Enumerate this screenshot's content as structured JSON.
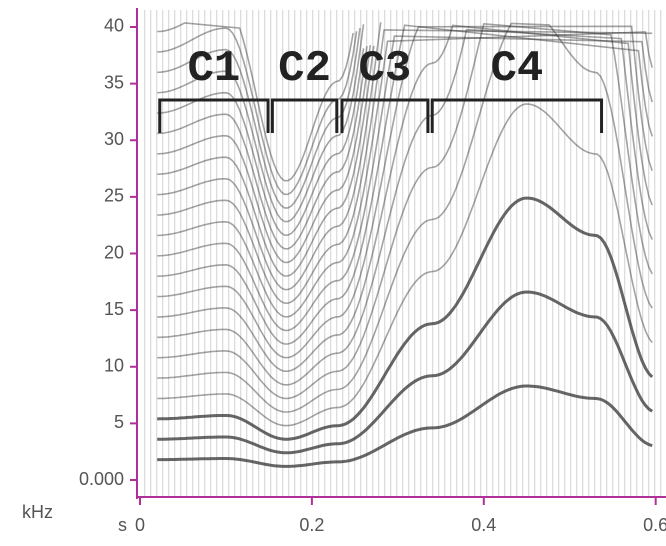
{
  "chart_data": {
    "type": "spectrogram",
    "xlim": [
      0,
      0.612
    ],
    "ylim": [
      -1.5,
      41.5
    ],
    "xticks": [
      {
        "value": 0,
        "label": "0"
      },
      0.2,
      0.4,
      0.6
    ],
    "yticks": [
      {
        "value": 0,
        "label": "0.000"
      },
      5,
      10,
      15,
      20,
      25,
      30,
      35,
      40
    ],
    "x_unit": "s",
    "y_unit": "kHz",
    "annotations": [
      {
        "text": "C1",
        "x": [
          0.023,
          0.149
        ]
      },
      {
        "text": "C2",
        "x": [
          0.154,
          0.229
        ]
      },
      {
        "text": "C3",
        "x": [
          0.235,
          0.335
        ]
      },
      {
        "text": "C4",
        "x": [
          0.34,
          0.537
        ]
      }
    ]
  }
}
